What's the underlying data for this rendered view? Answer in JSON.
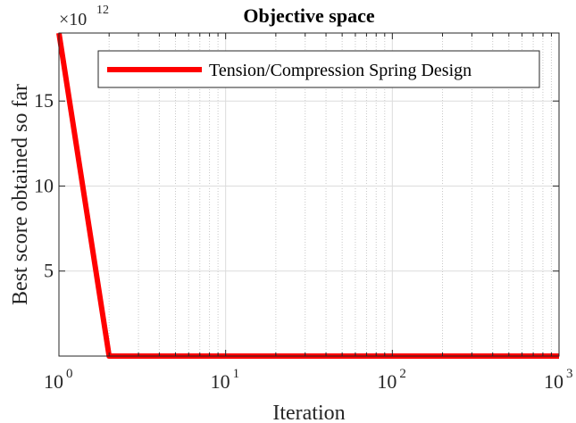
{
  "chart_data": {
    "type": "line",
    "title": "Objective space",
    "xlabel": "Iteration",
    "ylabel": "Best score obtained so far",
    "x_scale": "log",
    "xlim": [
      1,
      1000
    ],
    "ylim": [
      0,
      19
    ],
    "y_multiplier_label": "×10",
    "y_multiplier_exponent": "12",
    "x_tick_base": "10",
    "x_ticks": [
      {
        "value": 1,
        "exponent": "0"
      },
      {
        "value": 10,
        "exponent": "1"
      },
      {
        "value": 100,
        "exponent": "2"
      },
      {
        "value": 1000,
        "exponent": "3"
      }
    ],
    "y_ticks": [
      {
        "value": 5,
        "label": "5"
      },
      {
        "value": 10,
        "label": "10"
      },
      {
        "value": 15,
        "label": "15"
      }
    ],
    "grid": true,
    "legend_position": "top-right",
    "series": [
      {
        "name": "Tension/Compression Spring Design",
        "color": "#ff0000",
        "x": [
          1,
          2,
          1000
        ],
        "y": [
          19,
          0,
          0
        ]
      }
    ]
  }
}
